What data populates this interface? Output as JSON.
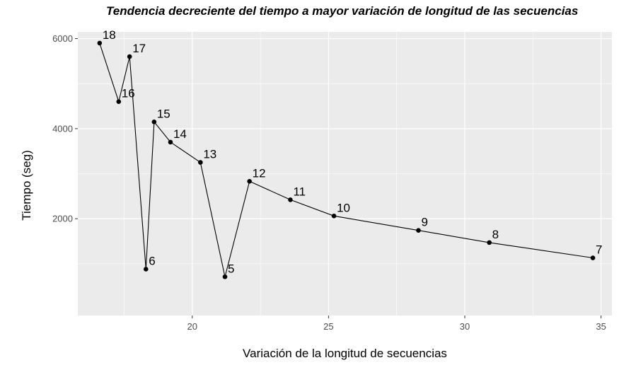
{
  "chart_data": {
    "type": "line",
    "title": "Tendencia decreciente del tiempo a mayor variación de longitud de las secuencias",
    "xlabel": "Variación de la longitud de secuencias",
    "ylabel": "Tiempo (seg)",
    "xlim": [
      15.8,
      35.4
    ],
    "ylim": [
      -0.15,
      6.15
    ],
    "x_ticks": [
      20,
      25,
      30,
      35
    ],
    "y_ticks": [
      2000,
      4000,
      6000
    ],
    "grid": true,
    "legend": "none",
    "colors": {
      "panel": "#ebebeb",
      "grid": "#ffffff",
      "line": "#000000",
      "point": "#000000",
      "tick_text": "#4d4d4d"
    },
    "points": [
      {
        "label": "18",
        "x": 16.6,
        "y": 5900
      },
      {
        "label": "16",
        "x": 17.3,
        "y": 4600
      },
      {
        "label": "17",
        "x": 17.7,
        "y": 5600
      },
      {
        "label": "6",
        "x": 18.3,
        "y": 880
      },
      {
        "label": "15",
        "x": 18.6,
        "y": 4150
      },
      {
        "label": "14",
        "x": 19.2,
        "y": 3700
      },
      {
        "label": "13",
        "x": 20.3,
        "y": 3250
      },
      {
        "label": "5",
        "x": 21.2,
        "y": 710
      },
      {
        "label": "12",
        "x": 22.1,
        "y": 2830
      },
      {
        "label": "11",
        "x": 23.6,
        "y": 2420
      },
      {
        "label": "10",
        "x": 25.2,
        "y": 2060
      },
      {
        "label": "9",
        "x": 28.3,
        "y": 1740
      },
      {
        "label": "8",
        "x": 30.9,
        "y": 1470
      },
      {
        "label": "7",
        "x": 34.7,
        "y": 1130
      }
    ]
  }
}
